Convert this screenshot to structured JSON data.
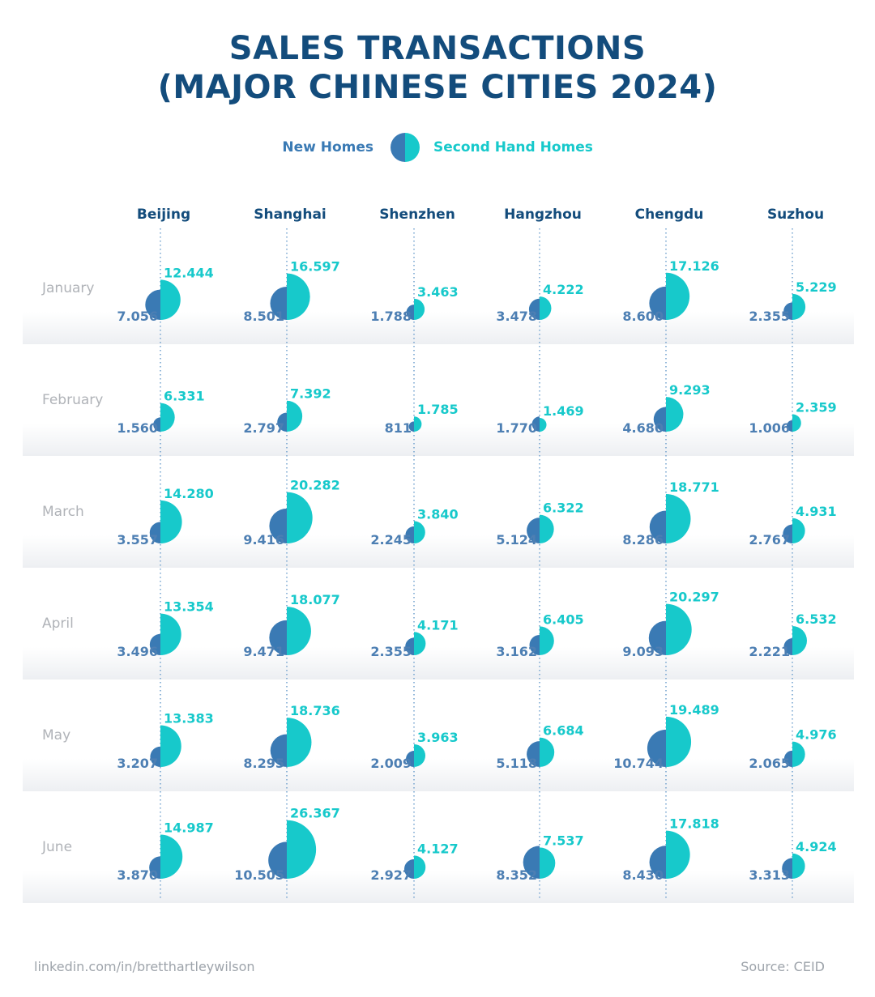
{
  "chart_data": {
    "type": "bubble-grid",
    "title": [
      "SALES TRANSACTIONS",
      "(MAJOR CHINESE CITIES 2024)"
    ],
    "legend": {
      "new_label": "New Homes",
      "second_label": "Second Hand Homes"
    },
    "colors": {
      "new": "#3a7ab4",
      "second": "#17c9cb",
      "title": "#134c7c",
      "month": "#b0b3b8",
      "city": "#134c7c"
    },
    "cities": [
      "Beijing",
      "Shanghai",
      "Shenzhen",
      "Hangzhou",
      "Chengdu",
      "Suzhou"
    ],
    "months": [
      "January",
      "February",
      "March",
      "April",
      "May",
      "June"
    ],
    "series": [
      {
        "name": "New Homes",
        "values": [
          [
            7056,
            8501,
            1788,
            3478,
            8600,
            2355
          ],
          [
            1560,
            2797,
            811,
            1770,
            4680,
            1006
          ],
          [
            3557,
            9416,
            2245,
            5124,
            8286,
            2767
          ],
          [
            3496,
            9471,
            2355,
            3162,
            9093,
            2221
          ],
          [
            3207,
            8295,
            2009,
            5118,
            10744,
            2065
          ],
          [
            3870,
            10505,
            2927,
            8352,
            8430,
            3313
          ]
        ],
        "labels": [
          [
            "7.056",
            "8.501",
            "1.788",
            "3.478",
            "8.600",
            "2.355"
          ],
          [
            "1.560",
            "2.797",
            "811",
            "1.770",
            "4.680",
            "1.006"
          ],
          [
            "3.557",
            "9.416",
            "2.245",
            "5.124",
            "8.286",
            "2.767"
          ],
          [
            "3.496",
            "9.471",
            "2.355",
            "3.162",
            "9.093",
            "2.221"
          ],
          [
            "3.207",
            "8.295",
            "2.009",
            "5.118",
            "10.744",
            "2.065"
          ],
          [
            "3.870",
            "10.505",
            "2.927",
            "8.352",
            "8.430",
            "3.313"
          ]
        ]
      },
      {
        "name": "Second Hand Homes",
        "values": [
          [
            12444,
            16597,
            3463,
            4222,
            17126,
            5229
          ],
          [
            6331,
            7392,
            1785,
            1469,
            9293,
            2359
          ],
          [
            14280,
            20282,
            3840,
            6322,
            18771,
            4931
          ],
          [
            13354,
            18077,
            4171,
            6405,
            20297,
            6532
          ],
          [
            13383,
            18736,
            3963,
            6684,
            19489,
            4976
          ],
          [
            14987,
            26367,
            4127,
            7537,
            17818,
            4924
          ]
        ],
        "labels": [
          [
            "12.444",
            "16.597",
            "3.463",
            "4.222",
            "17.126",
            "5.229"
          ],
          [
            "6.331",
            "7.392",
            "1.785",
            "1.469",
            "9.293",
            "2.359"
          ],
          [
            "14.280",
            "20.282",
            "3.840",
            "6.322",
            "18.771",
            "4.931"
          ],
          [
            "13.354",
            "18.077",
            "4.171",
            "6.405",
            "20.297",
            "6.532"
          ],
          [
            "13.383",
            "18.736",
            "3.963",
            "6.684",
            "19.489",
            "4.976"
          ],
          [
            "14.987",
            "26.367",
            "4.127",
            "7.537",
            "17.818",
            "4.924"
          ]
        ]
      }
    ]
  },
  "footer": {
    "left": "linkedin.com/in/bretthartleywilson",
    "right": "Source: CEID"
  }
}
